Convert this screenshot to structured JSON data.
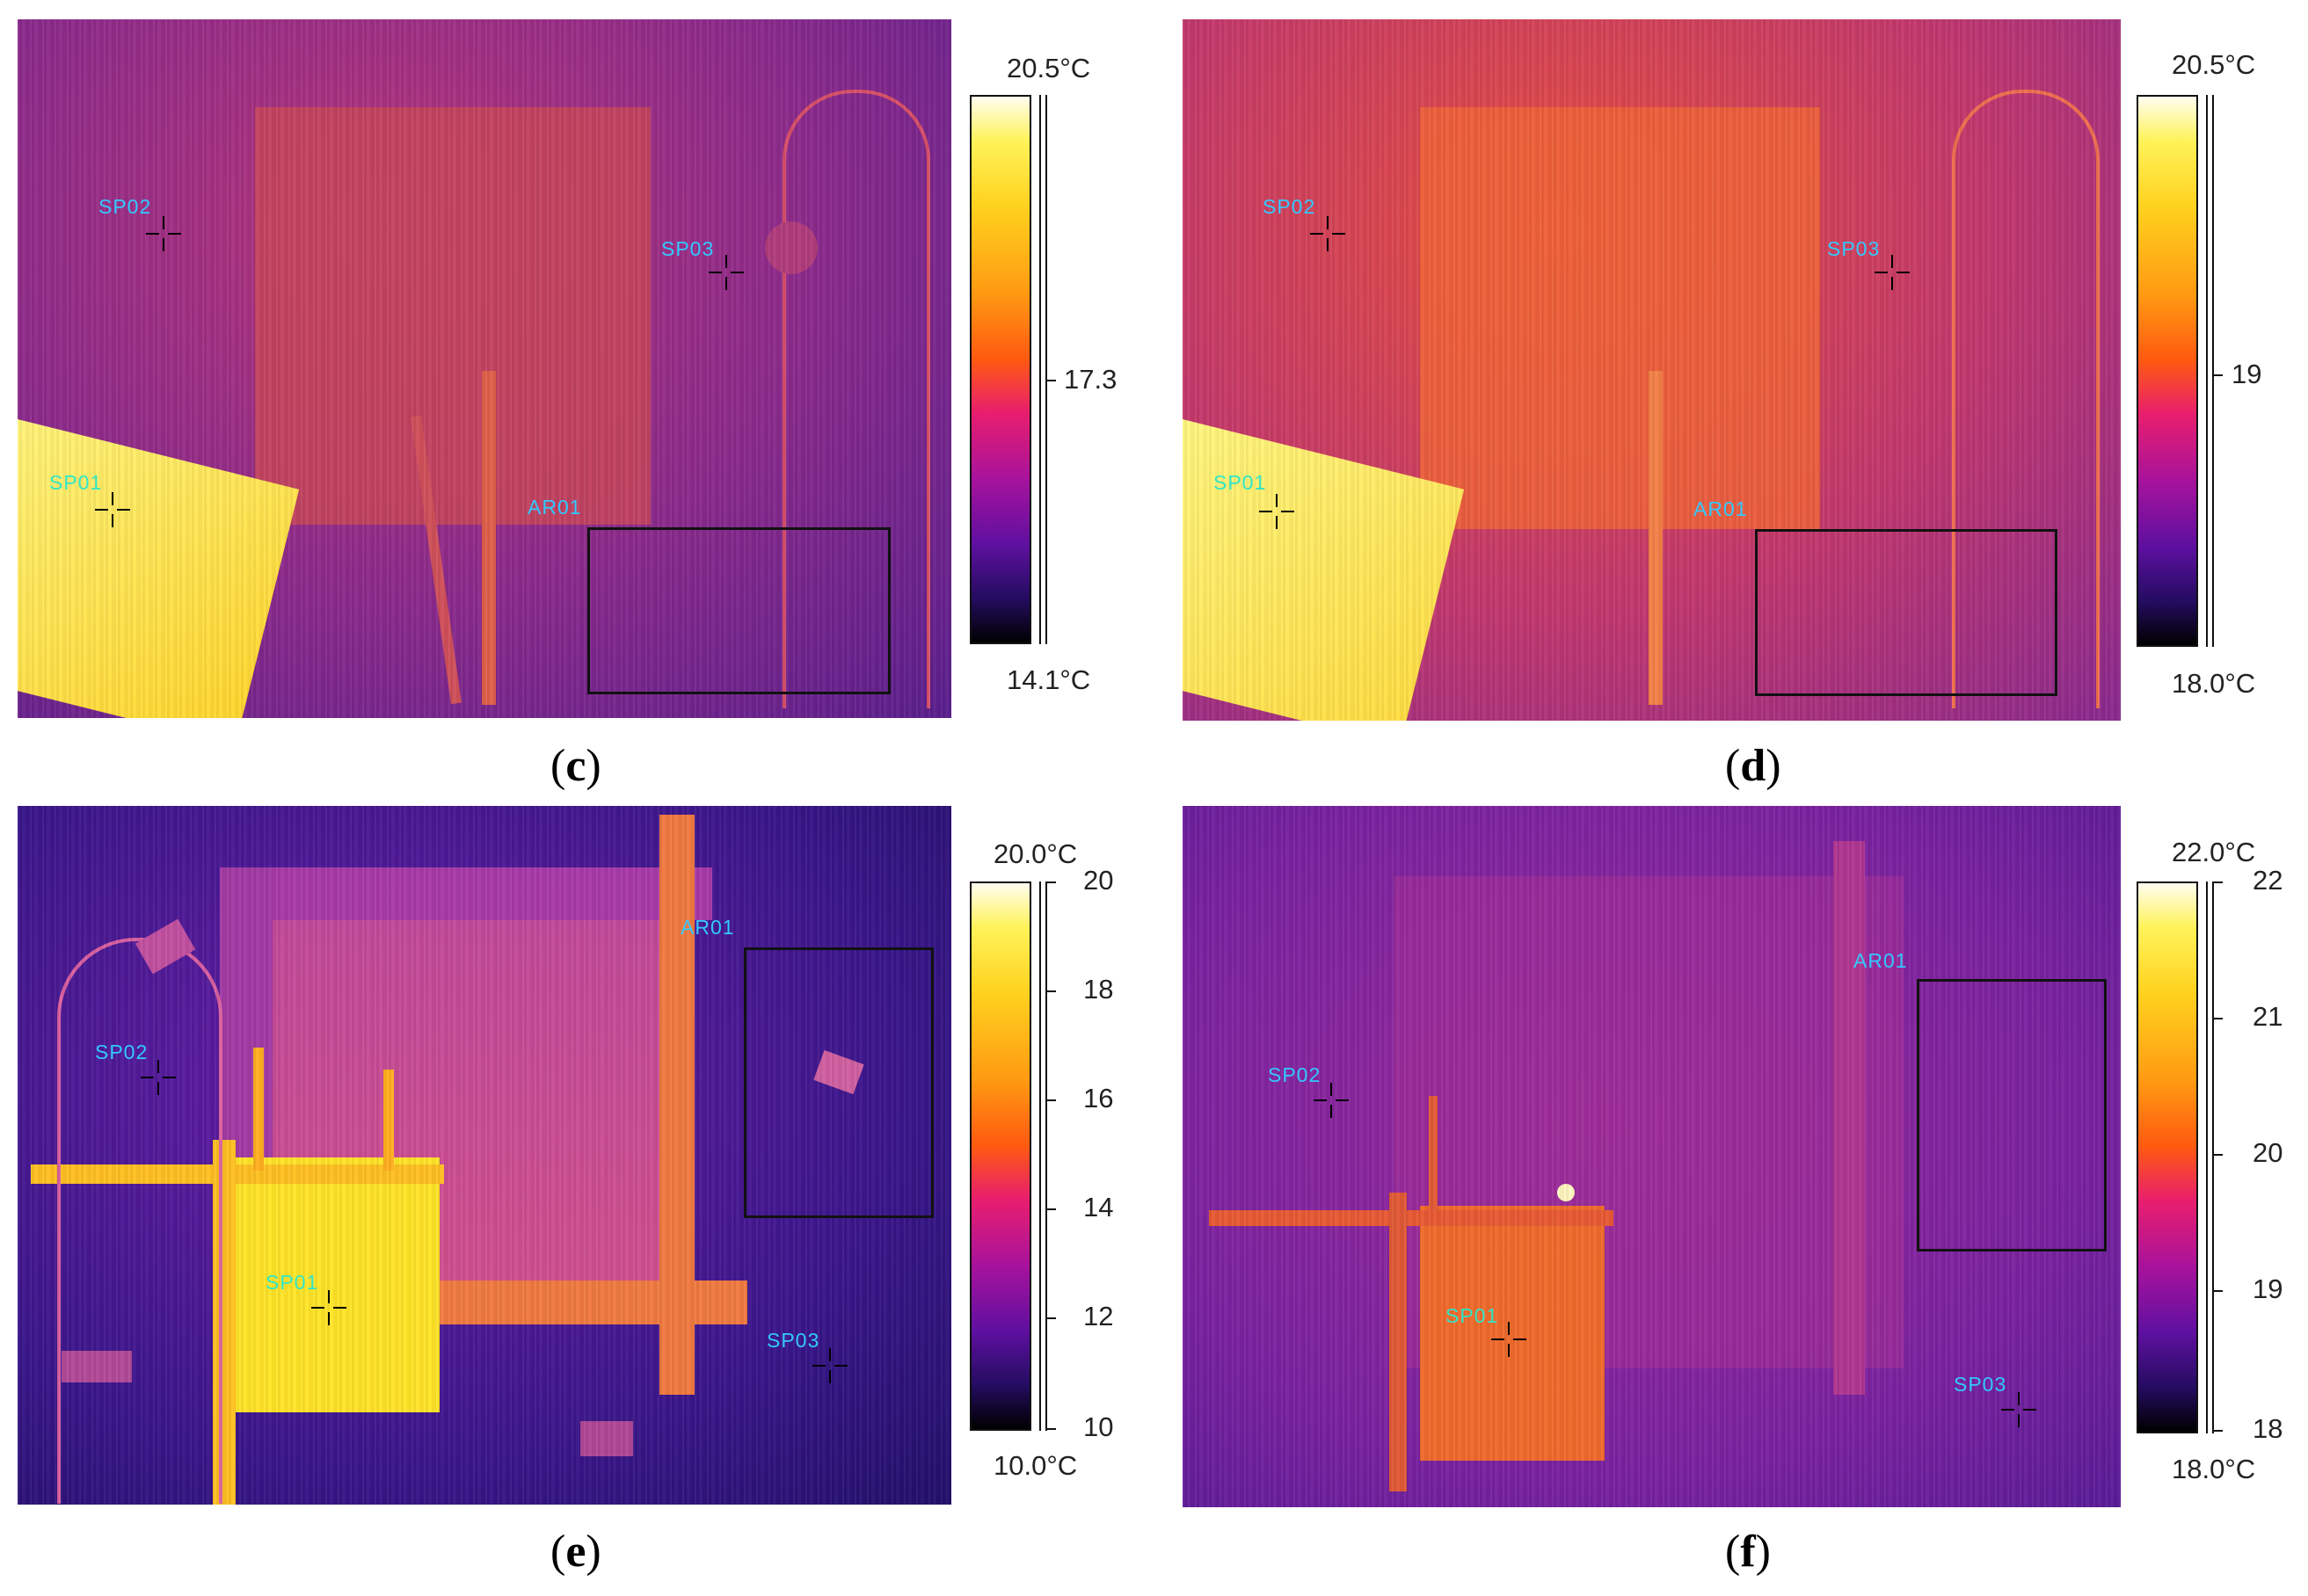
{
  "panels": {
    "c": {
      "caption_letter": "c",
      "labels": {
        "sp01": "SP01",
        "sp02": "SP02",
        "sp03": "SP03",
        "ar01": "AR01"
      },
      "colorbar": {
        "max_label": "20.5°C",
        "mid_label": "17.3",
        "min_label": "14.1°C",
        "max": 20.5,
        "min": 14.1
      }
    },
    "d": {
      "caption_letter": "d",
      "labels": {
        "sp01": "SP01",
        "sp02": "SP02",
        "sp03": "SP03",
        "ar01": "AR01"
      },
      "colorbar": {
        "max_label": "20.5°C",
        "mid_label": "19",
        "min_label": "18.0°C",
        "max": 20.5,
        "min": 18.0
      }
    },
    "e": {
      "caption_letter": "e",
      "labels": {
        "sp01": "SP01",
        "sp02": "SP02",
        "sp03": "SP03",
        "ar01": "AR01"
      },
      "colorbar": {
        "max_label": "20.0°C",
        "min_label": "10.0°C",
        "max": 20.0,
        "min": 10.0,
        "ticks": [
          "20",
          "18",
          "16",
          "14",
          "12",
          "10"
        ]
      }
    },
    "f": {
      "caption_letter": "f",
      "labels": {
        "sp01": "SP01",
        "sp02": "SP02",
        "sp03": "SP03",
        "ar01": "AR01"
      },
      "colorbar": {
        "max_label": "22.0°C",
        "min_label": "18.0°C",
        "max": 22.0,
        "min": 18.0,
        "ticks": [
          "22",
          "21",
          "20",
          "19",
          "18"
        ]
      }
    }
  },
  "colors": {
    "label": "#33c8ff",
    "palette": "iron"
  }
}
